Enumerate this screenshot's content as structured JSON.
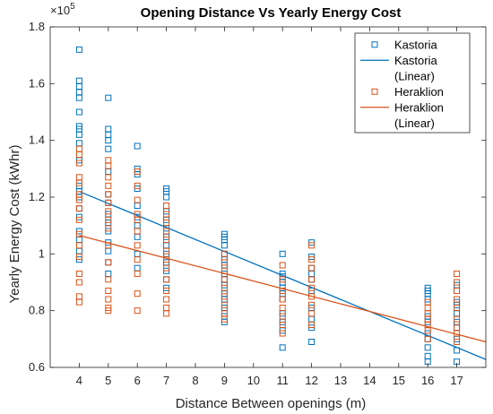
{
  "chart_data": {
    "type": "scatter",
    "title": "Opening Distance Vs Yearly Energy Cost",
    "xlabel": "Distance Between openings (m)",
    "ylabel": "Yearly Energy Cost (kWhr)",
    "exponent_label": "×10",
    "exponent_power": "5",
    "xlim": [
      3,
      18
    ],
    "ylim": [
      0.6,
      1.8
    ],
    "xticks": [
      4,
      5,
      6,
      7,
      8,
      9,
      10,
      11,
      12,
      13,
      14,
      15,
      16,
      17
    ],
    "yticks": [
      0.6,
      0.8,
      1,
      1.2,
      1.4,
      1.6,
      1.8
    ],
    "ytick_labels": [
      "0.6",
      "0.8",
      "1",
      "1.2",
      "1.4",
      "1.6",
      "1.8"
    ],
    "legend_position": "top-right",
    "colors": {
      "kastoria": "#0072BD",
      "heraklion": "#D95319"
    },
    "series": [
      {
        "name": "Kastoria",
        "kind": "scatter",
        "color": "#0072BD",
        "points": [
          [
            4,
            1.72
          ],
          [
            4,
            1.61
          ],
          [
            4,
            1.59
          ],
          [
            4,
            1.57
          ],
          [
            4,
            1.55
          ],
          [
            4,
            1.5
          ],
          [
            4,
            1.45
          ],
          [
            4,
            1.44
          ],
          [
            4,
            1.42
          ],
          [
            4,
            1.39
          ],
          [
            4,
            1.33
          ],
          [
            4,
            1.24
          ],
          [
            4,
            1.22
          ],
          [
            4,
            1.2
          ],
          [
            4,
            1.16
          ],
          [
            4,
            1.13
          ],
          [
            4,
            1.08
          ],
          [
            4,
            1.05
          ],
          [
            4,
            1.01
          ],
          [
            4,
            0.98
          ],
          [
            5,
            1.55
          ],
          [
            5,
            1.44
          ],
          [
            5,
            1.42
          ],
          [
            5,
            1.4
          ],
          [
            5,
            1.37
          ],
          [
            5,
            1.29
          ],
          [
            5,
            1.21
          ],
          [
            5,
            1.18
          ],
          [
            5,
            1.14
          ],
          [
            5,
            1.11
          ],
          [
            5,
            1.08
          ],
          [
            5,
            1.04
          ],
          [
            5,
            1.01
          ],
          [
            5,
            0.97
          ],
          [
            5,
            0.93
          ],
          [
            6,
            1.38
          ],
          [
            6,
            1.3
          ],
          [
            6,
            1.28
          ],
          [
            6,
            1.23
          ],
          [
            6,
            1.17
          ],
          [
            6,
            1.13
          ],
          [
            6,
            1.1
          ],
          [
            6,
            1.06
          ],
          [
            6,
            1.0
          ],
          [
            6,
            0.95
          ],
          [
            7,
            1.23
          ],
          [
            7,
            1.22
          ],
          [
            7,
            1.2
          ],
          [
            7,
            1.15
          ],
          [
            7,
            1.12
          ],
          [
            7,
            1.09
          ],
          [
            7,
            1.06
          ],
          [
            7,
            1.03
          ],
          [
            7,
            1.0
          ],
          [
            7,
            0.97
          ],
          [
            7,
            0.94
          ],
          [
            7,
            0.91
          ],
          [
            7,
            0.88
          ],
          [
            9,
            1.07
          ],
          [
            9,
            1.06
          ],
          [
            9,
            1.05
          ],
          [
            9,
            1.03
          ],
          [
            9,
            1.0
          ],
          [
            9,
            0.98
          ],
          [
            9,
            0.96
          ],
          [
            9,
            0.93
          ],
          [
            9,
            0.91
          ],
          [
            9,
            0.89
          ],
          [
            9,
            0.86
          ],
          [
            9,
            0.84
          ],
          [
            9,
            0.81
          ],
          [
            9,
            0.78
          ],
          [
            9,
            0.76
          ],
          [
            11,
            1.0
          ],
          [
            11,
            0.93
          ],
          [
            11,
            0.92
          ],
          [
            11,
            0.9
          ],
          [
            11,
            0.88
          ],
          [
            11,
            0.86
          ],
          [
            11,
            0.84
          ],
          [
            11,
            0.79
          ],
          [
            11,
            0.76
          ],
          [
            11,
            0.73
          ],
          [
            11,
            0.67
          ],
          [
            12,
            1.04
          ],
          [
            12,
            0.99
          ],
          [
            12,
            0.95
          ],
          [
            12,
            0.93
          ],
          [
            12,
            0.91
          ],
          [
            12,
            0.87
          ],
          [
            12,
            0.81
          ],
          [
            12,
            0.77
          ],
          [
            12,
            0.74
          ],
          [
            12,
            0.69
          ],
          [
            16,
            0.88
          ],
          [
            16,
            0.87
          ],
          [
            16,
            0.86
          ],
          [
            16,
            0.84
          ],
          [
            16,
            0.78
          ],
          [
            16,
            0.76
          ],
          [
            16,
            0.72
          ],
          [
            16,
            0.7
          ],
          [
            16,
            0.67
          ],
          [
            16,
            0.64
          ],
          [
            16,
            0.62
          ],
          [
            17,
            0.89
          ],
          [
            17,
            0.87
          ],
          [
            17,
            0.83
          ],
          [
            17,
            0.82
          ],
          [
            17,
            0.79
          ],
          [
            17,
            0.76
          ],
          [
            17,
            0.74
          ],
          [
            17,
            0.7
          ],
          [
            17,
            0.66
          ],
          [
            17,
            0.62
          ]
        ]
      },
      {
        "name": "Kastoria\n(Linear)",
        "kind": "line",
        "color": "#0072BD",
        "points": [
          [
            4,
            1.22
          ],
          [
            18,
            0.628
          ]
        ]
      },
      {
        "name": "Heraklion",
        "kind": "scatter",
        "color": "#D95319",
        "points": [
          [
            4,
            1.37
          ],
          [
            4,
            1.35
          ],
          [
            4,
            1.32
          ],
          [
            4,
            1.27
          ],
          [
            4,
            1.25
          ],
          [
            4,
            1.21
          ],
          [
            4,
            1.19
          ],
          [
            4,
            1.16
          ],
          [
            4,
            1.12
          ],
          [
            4,
            1.07
          ],
          [
            4,
            1.03
          ],
          [
            4,
            0.99
          ],
          [
            4,
            0.93
          ],
          [
            4,
            0.9
          ],
          [
            4,
            0.85
          ],
          [
            4,
            0.83
          ],
          [
            5,
            1.33
          ],
          [
            5,
            1.31
          ],
          [
            5,
            1.27
          ],
          [
            5,
            1.24
          ],
          [
            5,
            1.21
          ],
          [
            5,
            1.18
          ],
          [
            5,
            1.15
          ],
          [
            5,
            1.12
          ],
          [
            5,
            1.09
          ],
          [
            5,
            1.03
          ],
          [
            5,
            0.97
          ],
          [
            5,
            0.91
          ],
          [
            5,
            0.87
          ],
          [
            5,
            0.84
          ],
          [
            5,
            0.81
          ],
          [
            5,
            0.8
          ],
          [
            6,
            1.29
          ],
          [
            6,
            1.24
          ],
          [
            6,
            1.19
          ],
          [
            6,
            1.14
          ],
          [
            6,
            1.12
          ],
          [
            6,
            1.08
          ],
          [
            6,
            1.03
          ],
          [
            6,
            0.98
          ],
          [
            6,
            0.93
          ],
          [
            6,
            0.86
          ],
          [
            6,
            0.8
          ],
          [
            7,
            1.17
          ],
          [
            7,
            1.14
          ],
          [
            7,
            1.11
          ],
          [
            7,
            1.08
          ],
          [
            7,
            1.05
          ],
          [
            7,
            1.01
          ],
          [
            7,
            0.98
          ],
          [
            7,
            0.95
          ],
          [
            7,
            0.91
          ],
          [
            7,
            0.87
          ],
          [
            7,
            0.84
          ],
          [
            7,
            0.81
          ],
          [
            7,
            0.79
          ],
          [
            9,
            1.0
          ],
          [
            9,
            0.97
          ],
          [
            9,
            0.94
          ],
          [
            9,
            0.91
          ],
          [
            9,
            0.88
          ],
          [
            9,
            0.85
          ],
          [
            9,
            0.82
          ],
          [
            9,
            0.79
          ],
          [
            9,
            0.77
          ],
          [
            11,
            0.96
          ],
          [
            11,
            0.91
          ],
          [
            11,
            0.87
          ],
          [
            11,
            0.84
          ],
          [
            11,
            0.81
          ],
          [
            11,
            0.78
          ],
          [
            11,
            0.75
          ],
          [
            11,
            0.72
          ],
          [
            12,
            1.03
          ],
          [
            12,
            0.98
          ],
          [
            12,
            0.95
          ],
          [
            12,
            0.91
          ],
          [
            12,
            0.88
          ],
          [
            12,
            0.85
          ],
          [
            12,
            0.82
          ],
          [
            12,
            0.79
          ],
          [
            12,
            0.75
          ],
          [
            16,
            0.83
          ],
          [
            16,
            0.81
          ],
          [
            16,
            0.79
          ],
          [
            16,
            0.77
          ],
          [
            16,
            0.75
          ],
          [
            16,
            0.73
          ],
          [
            16,
            0.7
          ],
          [
            17,
            0.93
          ],
          [
            17,
            0.9
          ],
          [
            17,
            0.87
          ],
          [
            17,
            0.84
          ],
          [
            17,
            0.81
          ],
          [
            17,
            0.77
          ],
          [
            17,
            0.74
          ],
          [
            17,
            0.72
          ],
          [
            17,
            0.69
          ]
        ]
      },
      {
        "name": "Heraklion\n(Linear)",
        "kind": "line",
        "color": "#D95319",
        "points": [
          [
            4,
            1.065
          ],
          [
            18,
            0.69
          ]
        ]
      }
    ]
  }
}
